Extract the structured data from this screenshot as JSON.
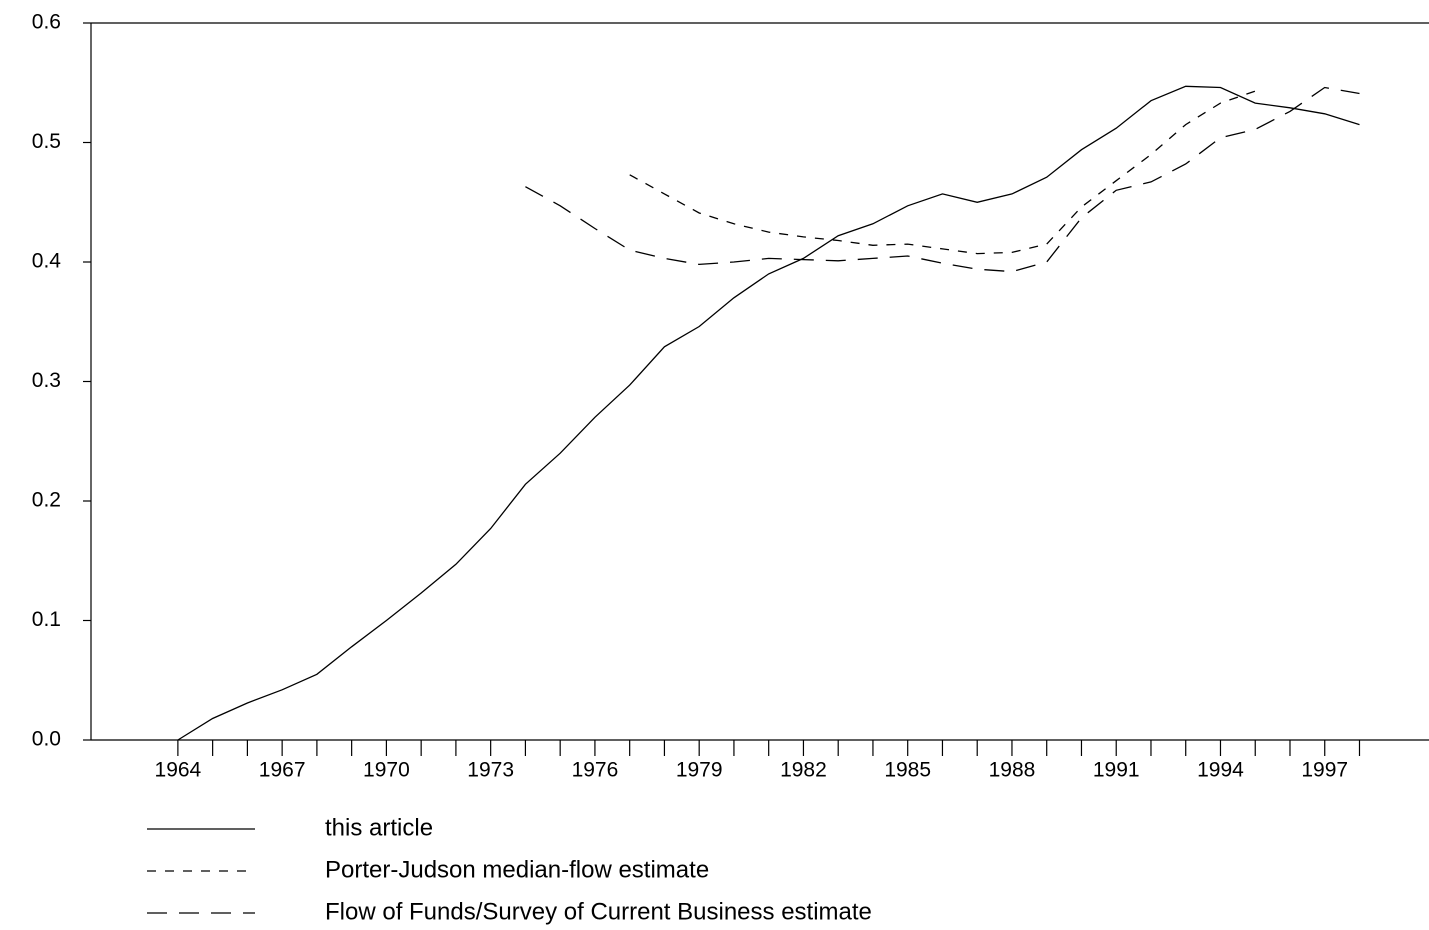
{
  "chart_data": {
    "type": "line",
    "x": [
      1964,
      1965,
      1966,
      1967,
      1968,
      1969,
      1970,
      1971,
      1972,
      1973,
      1974,
      1975,
      1976,
      1977,
      1978,
      1979,
      1980,
      1981,
      1982,
      1983,
      1984,
      1985,
      1986,
      1987,
      1988,
      1989,
      1990,
      1991,
      1992,
      1993,
      1994,
      1995,
      1996,
      1997,
      1998
    ],
    "series": [
      {
        "name": "this article",
        "color": "#000000",
        "dash": "solid",
        "values": [
          0.0,
          0.018,
          0.031,
          0.042,
          0.055,
          0.078,
          0.1,
          0.123,
          0.147,
          0.177,
          0.214,
          0.24,
          0.27,
          0.297,
          0.329,
          0.346,
          0.37,
          0.39,
          0.403,
          0.422,
          0.432,
          0.447,
          0.457,
          0.45,
          0.457,
          0.471,
          0.494,
          0.512,
          0.535,
          0.547,
          0.546,
          0.533,
          0.529,
          0.524,
          0.515
        ]
      },
      {
        "name": "Porter-Judson median-flow estimate",
        "color": "#000000",
        "dash": "short",
        "values": [
          null,
          null,
          null,
          null,
          null,
          null,
          null,
          null,
          null,
          null,
          null,
          null,
          null,
          0.473,
          0.457,
          0.441,
          0.432,
          0.425,
          0.421,
          0.418,
          0.414,
          0.415,
          0.411,
          0.407,
          0.408,
          0.415,
          0.446,
          0.468,
          0.49,
          0.515,
          0.533,
          0.543,
          null,
          null,
          null
        ]
      },
      {
        "name": "Flow of Funds/Survey of Current Business estimate",
        "color": "#000000",
        "dash": "long",
        "values": [
          null,
          null,
          null,
          null,
          null,
          null,
          null,
          null,
          null,
          null,
          0.463,
          0.447,
          0.428,
          0.41,
          0.403,
          0.398,
          0.4,
          0.403,
          0.402,
          0.401,
          0.403,
          0.405,
          0.399,
          0.394,
          0.392,
          0.4,
          0.437,
          0.46,
          0.467,
          0.482,
          0.504,
          0.511,
          0.526,
          0.546,
          0.541
        ]
      }
    ],
    "xlim": [
      1961.5,
      2000
    ],
    "xticks": [
      1964,
      1967,
      1970,
      1973,
      1976,
      1979,
      1982,
      1985,
      1988,
      1991,
      1994,
      1997
    ],
    "x_minor_ticks": [
      1965,
      1966,
      1968,
      1969,
      1971,
      1972,
      1974,
      1975,
      1977,
      1978,
      1980,
      1981,
      1983,
      1984,
      1986,
      1987,
      1989,
      1990,
      1992,
      1993,
      1995,
      1996,
      1998
    ],
    "ylim": [
      0,
      0.6
    ],
    "yticks": [
      {
        "value": 0,
        "label": "0.0"
      },
      0.1,
      0.2,
      0.3,
      0.4,
      0.5,
      0.6
    ],
    "grid": false,
    "legend": "bottom-left"
  }
}
